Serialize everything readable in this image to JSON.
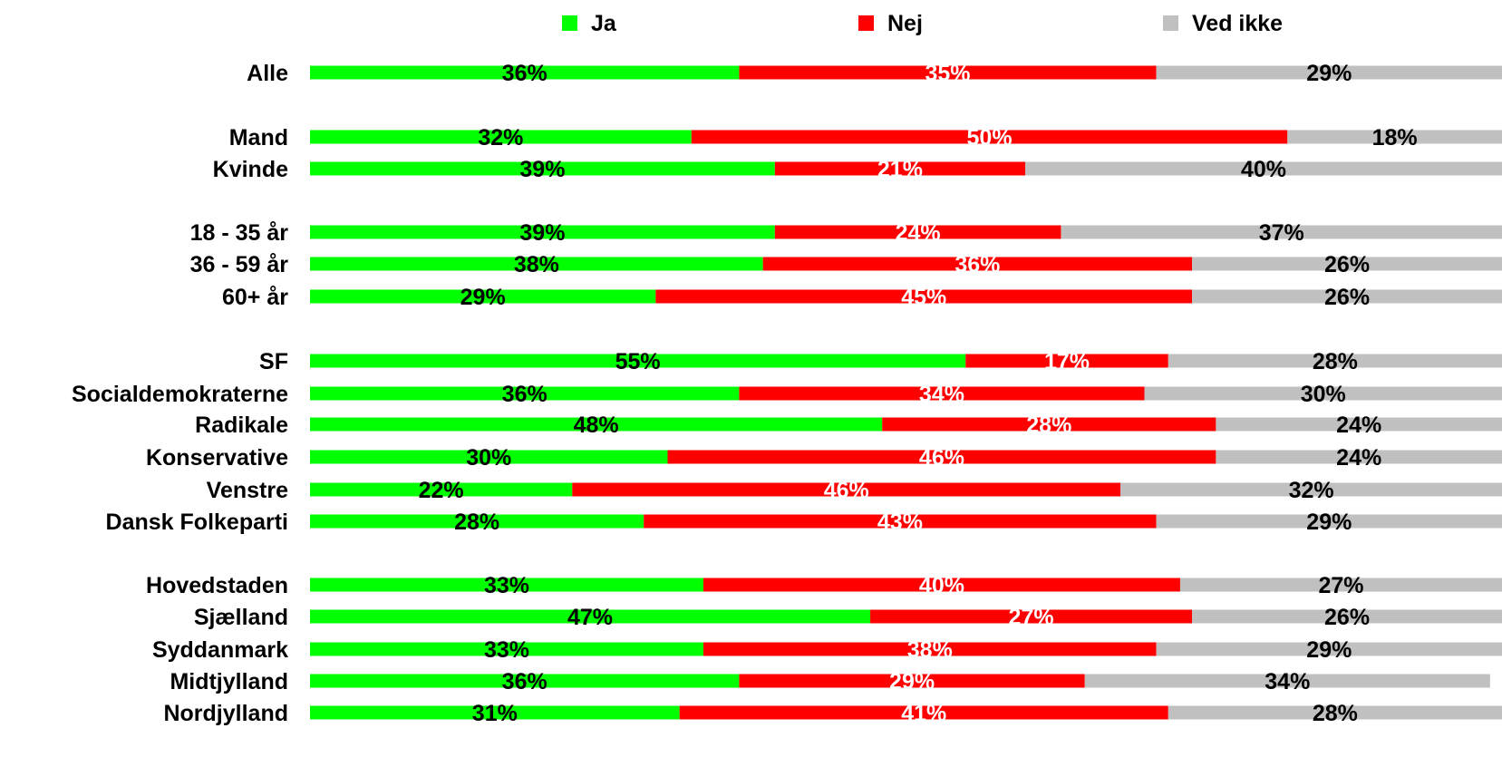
{
  "chart_data": {
    "type": "bar",
    "orientation": "horizontal",
    "stacked": "percent",
    "legend_position": "top",
    "grid": false,
    "xlim": [
      0,
      100
    ],
    "series": [
      {
        "name": "Ja",
        "color": "#00FF00",
        "label_color": "#000000"
      },
      {
        "name": "Nej",
        "color": "#FF0000",
        "label_color": "#FFFFFF"
      },
      {
        "name": "Ved ikke",
        "color": "#C0C0C0",
        "label_color": "#000000"
      }
    ],
    "rows": [
      {
        "label": "Alle",
        "values": [
          36,
          35,
          29
        ],
        "labels": [
          "36%",
          "35%",
          "29%"
        ]
      },
      {
        "label": "Mand",
        "values": [
          32,
          50,
          18
        ],
        "labels": [
          "32%",
          "50%",
          "18%"
        ]
      },
      {
        "label": "Kvinde",
        "values": [
          39,
          21,
          40
        ],
        "labels": [
          "39%",
          "21%",
          "40%"
        ]
      },
      {
        "label": "18 - 35 år",
        "values": [
          39,
          24,
          37
        ],
        "labels": [
          "39%",
          "24%",
          "37%"
        ]
      },
      {
        "label": "36 - 59 år",
        "values": [
          38,
          36,
          26
        ],
        "labels": [
          "38%",
          "36%",
          "26%"
        ]
      },
      {
        "label": "60+ år",
        "values": [
          29,
          45,
          26
        ],
        "labels": [
          "29%",
          "45%",
          "26%"
        ]
      },
      {
        "label": "SF",
        "values": [
          55,
          17,
          28
        ],
        "labels": [
          "55%",
          "17%",
          "28%"
        ]
      },
      {
        "label": "Socialdemokraterne",
        "values": [
          36,
          34,
          30
        ],
        "labels": [
          "36%",
          "34%",
          "30%"
        ]
      },
      {
        "label": "Radikale",
        "values": [
          48,
          28,
          24
        ],
        "labels": [
          "48%",
          "28%",
          "24%"
        ]
      },
      {
        "label": "Konservative",
        "values": [
          30,
          46,
          24
        ],
        "labels": [
          "30%",
          "46%",
          "24%"
        ]
      },
      {
        "label": "Venstre",
        "values": [
          22,
          46,
          32
        ],
        "labels": [
          "22%",
          "46%",
          "32%"
        ]
      },
      {
        "label": "Dansk Folkeparti",
        "values": [
          28,
          43,
          29
        ],
        "labels": [
          "28%",
          "43%",
          "29%"
        ]
      },
      {
        "label": "Hovedstaden",
        "values": [
          33,
          40,
          27
        ],
        "labels": [
          "33%",
          "40%",
          "27%"
        ]
      },
      {
        "label": "Sjælland",
        "values": [
          47,
          27,
          26
        ],
        "labels": [
          "47%",
          "27%",
          "26%"
        ]
      },
      {
        "label": "Syddanmark",
        "values": [
          33,
          38,
          29
        ],
        "labels": [
          "33%",
          "38%",
          "29%"
        ]
      },
      {
        "label": "Midtjylland",
        "values": [
          36,
          29,
          34
        ],
        "labels": [
          "36%",
          "29%",
          "34%"
        ]
      },
      {
        "label": "Nordjylland",
        "values": [
          31,
          41,
          28
        ],
        "labels": [
          "31%",
          "41%",
          "28%"
        ]
      }
    ]
  }
}
